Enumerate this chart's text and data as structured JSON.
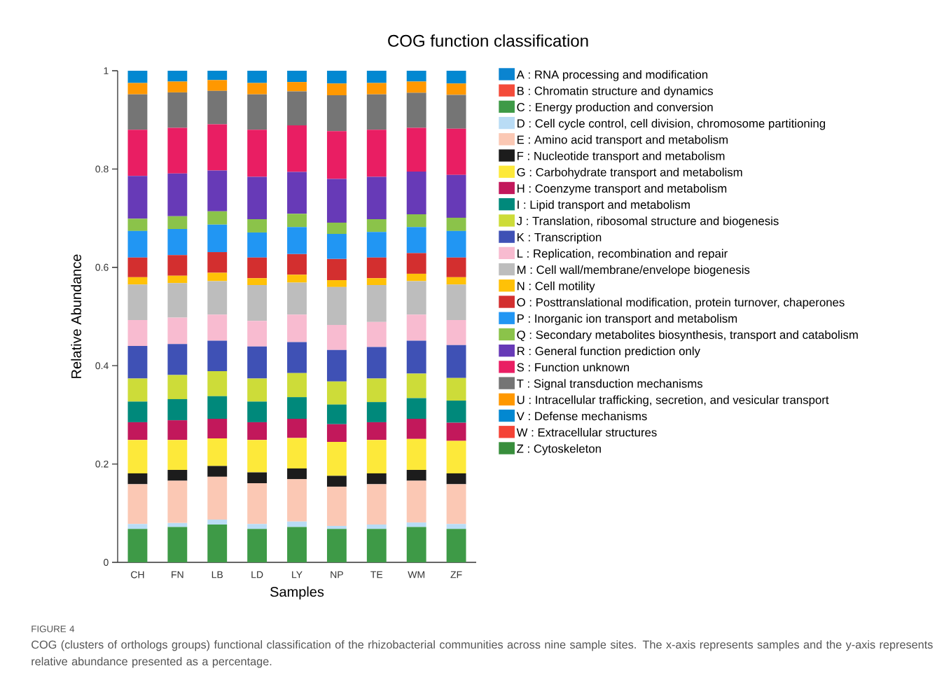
{
  "chart_data": {
    "type": "bar",
    "stacked": true,
    "title": "COG function classification",
    "xlabel": "Samples",
    "ylabel": "Relative Abundance",
    "categories": [
      "CH",
      "FN",
      "LB",
      "LD",
      "LY",
      "NP",
      "TE",
      "WM",
      "ZF"
    ],
    "ylim": [
      0,
      1
    ],
    "yticks": [
      0,
      0.2,
      0.4,
      0.6,
      0.8,
      1
    ],
    "legend": "right",
    "series": [
      {
        "name": "A : RNA processing and modification",
        "color": "#0b84d0",
        "values": [
          0,
          0,
          0,
          0,
          0,
          0,
          0,
          0,
          0
        ]
      },
      {
        "name": "B : Chromatin structure and dynamics",
        "color": "#f44b3a",
        "values": [
          0,
          0,
          0,
          0,
          0,
          0,
          0,
          0,
          0
        ]
      },
      {
        "name": "C : Energy production and conversion",
        "color": "#3e9a47",
        "values": [
          0.068,
          0.072,
          0.077,
          0.068,
          0.072,
          0.068,
          0.068,
          0.072,
          0.068
        ]
      },
      {
        "name": "D : Cell cycle control, cell division, chromosome partitioning",
        "color": "#b9dcf5",
        "values": [
          0.01,
          0.008,
          0.01,
          0.01,
          0.011,
          0.006,
          0.009,
          0.009,
          0.01
        ]
      },
      {
        "name": "E : Amino acid transport and metabolism",
        "color": "#fbc8b4",
        "values": [
          0.081,
          0.086,
          0.087,
          0.083,
          0.086,
          0.08,
          0.082,
          0.085,
          0.081
        ]
      },
      {
        "name": "F : Nucleotide transport and metabolism",
        "color": "#1c1c1c",
        "values": [
          0.022,
          0.022,
          0.022,
          0.022,
          0.022,
          0.022,
          0.022,
          0.022,
          0.022
        ]
      },
      {
        "name": "G : Carbohydrate transport and metabolism",
        "color": "#fde93a",
        "values": [
          0.068,
          0.061,
          0.056,
          0.066,
          0.062,
          0.069,
          0.068,
          0.063,
          0.066
        ]
      },
      {
        "name": "H : Coenzyme transport and metabolism",
        "color": "#c2185b",
        "values": [
          0.036,
          0.04,
          0.04,
          0.036,
          0.039,
          0.036,
          0.036,
          0.041,
          0.037
        ]
      },
      {
        "name": "I : Lipid transport and metabolism",
        "color": "#00897b",
        "values": [
          0.042,
          0.043,
          0.046,
          0.042,
          0.044,
          0.04,
          0.041,
          0.042,
          0.045
        ]
      },
      {
        "name": "J : Translation, ribosomal structure and biogenesis",
        "color": "#cddc39",
        "values": [
          0.047,
          0.049,
          0.051,
          0.047,
          0.049,
          0.047,
          0.048,
          0.05,
          0.046
        ]
      },
      {
        "name": "K : Transcription",
        "color": "#3f51b5",
        "values": [
          0.066,
          0.063,
          0.062,
          0.065,
          0.063,
          0.064,
          0.064,
          0.067,
          0.067
        ]
      },
      {
        "name": "L : Replication, recombination and repair",
        "color": "#f8bbd0",
        "values": [
          0.053,
          0.054,
          0.053,
          0.052,
          0.056,
          0.051,
          0.051,
          0.053,
          0.051
        ]
      },
      {
        "name": "M : Cell wall/membrane/envelope biogenesis",
        "color": "#bdbdbd",
        "values": [
          0.072,
          0.07,
          0.068,
          0.073,
          0.065,
          0.077,
          0.075,
          0.068,
          0.072
        ]
      },
      {
        "name": "N : Cell motility",
        "color": "#ffc107",
        "values": [
          0.015,
          0.015,
          0.017,
          0.014,
          0.016,
          0.014,
          0.014,
          0.015,
          0.015
        ]
      },
      {
        "name": "O : Posttranslational modification, protein turnover, chaperones",
        "color": "#d32f2f",
        "values": [
          0.04,
          0.042,
          0.042,
          0.042,
          0.042,
          0.043,
          0.042,
          0.042,
          0.04
        ]
      },
      {
        "name": "P : Inorganic ion transport and metabolism",
        "color": "#2196f3",
        "values": [
          0.054,
          0.053,
          0.056,
          0.051,
          0.055,
          0.051,
          0.052,
          0.053,
          0.054
        ]
      },
      {
        "name": "Q : Secondary metabolites biosynthesis, transport and catabolism",
        "color": "#8bc34a",
        "values": [
          0.025,
          0.026,
          0.027,
          0.027,
          0.027,
          0.023,
          0.026,
          0.026,
          0.027
        ]
      },
      {
        "name": "R : General function prediction only",
        "color": "#673ab7",
        "values": [
          0.087,
          0.087,
          0.083,
          0.086,
          0.085,
          0.089,
          0.086,
          0.087,
          0.087
        ]
      },
      {
        "name": "S : Function unknown",
        "color": "#e91e63",
        "values": [
          0.094,
          0.093,
          0.094,
          0.096,
          0.095,
          0.097,
          0.096,
          0.089,
          0.094
        ]
      },
      {
        "name": "T : Signal transduction mechanisms",
        "color": "#757575",
        "values": [
          0.072,
          0.072,
          0.068,
          0.072,
          0.069,
          0.073,
          0.072,
          0.071,
          0.069
        ]
      },
      {
        "name": "U : Intracellular trafficking, secretion, and vesicular transport",
        "color": "#ff9800",
        "values": [
          0.023,
          0.022,
          0.022,
          0.023,
          0.019,
          0.024,
          0.023,
          0.023,
          0.023
        ]
      },
      {
        "name": "V : Defense mechanisms",
        "color": "#0288d1",
        "values": [
          0.025,
          0.022,
          0.019,
          0.025,
          0.023,
          0.026,
          0.025,
          0.022,
          0.026
        ]
      },
      {
        "name": "W : Extracellular structures",
        "color": "#f44336",
        "values": [
          0,
          0,
          0,
          0,
          0,
          0,
          0,
          0,
          0
        ]
      },
      {
        "name": "Z : Cytoskeleton",
        "color": "#388e3c",
        "values": [
          0,
          0,
          0,
          0,
          0,
          0,
          0,
          0,
          0
        ]
      }
    ],
    "annotations": [
      "FIGURE 4",
      "COG (clusters of orthologs groups) functional classification of the rhizobacterial communities across nine sample sites. The x-axis represents samples and the y-axis represents relative abundance presented as a percentage."
    ]
  }
}
